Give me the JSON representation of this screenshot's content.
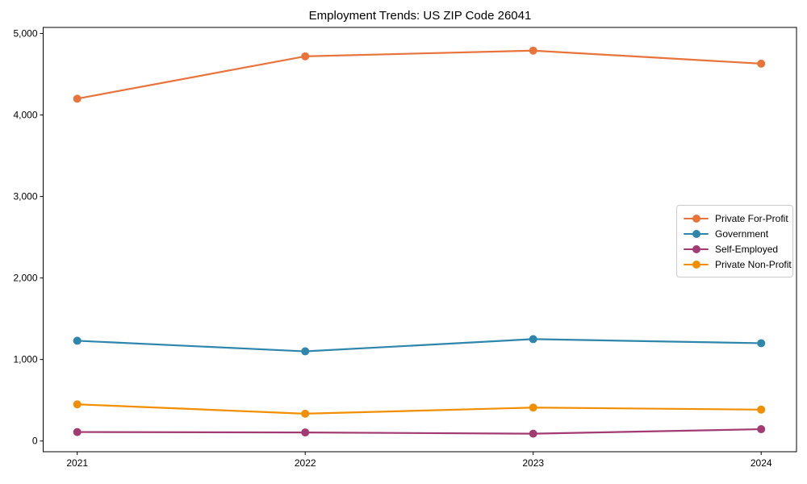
{
  "chart_data": {
    "type": "line",
    "title": "Employment Trends: US ZIP Code 26041",
    "categories": [
      "2021",
      "2022",
      "2023",
      "2024"
    ],
    "x": [
      2021,
      2022,
      2023,
      2024
    ],
    "series": [
      {
        "name": "Private For-Profit",
        "color": "#E8743B",
        "values": [
          4200,
          4720,
          4790,
          4630
        ]
      },
      {
        "name": "Government",
        "color": "#2E86AB",
        "values": [
          1230,
          1100,
          1250,
          1200
        ]
      },
      {
        "name": "Self-Employed",
        "color": "#A23B72",
        "values": [
          110,
          105,
          90,
          145
        ]
      },
      {
        "name": "Private Non-Profit",
        "color": "#F18F01",
        "values": [
          450,
          335,
          410,
          385
        ]
      }
    ],
    "xlabel": "",
    "ylabel": "",
    "ylim": [
      -130,
      5070
    ],
    "yticks": [
      0,
      1000,
      2000,
      3000,
      4000,
      5000
    ],
    "ytick_labels": [
      "0",
      "1,000",
      "2,000",
      "3,000",
      "4,000",
      "5,000"
    ],
    "grid": false,
    "legend_position": "center right",
    "marker": "circle",
    "axis_color": "#000000"
  }
}
